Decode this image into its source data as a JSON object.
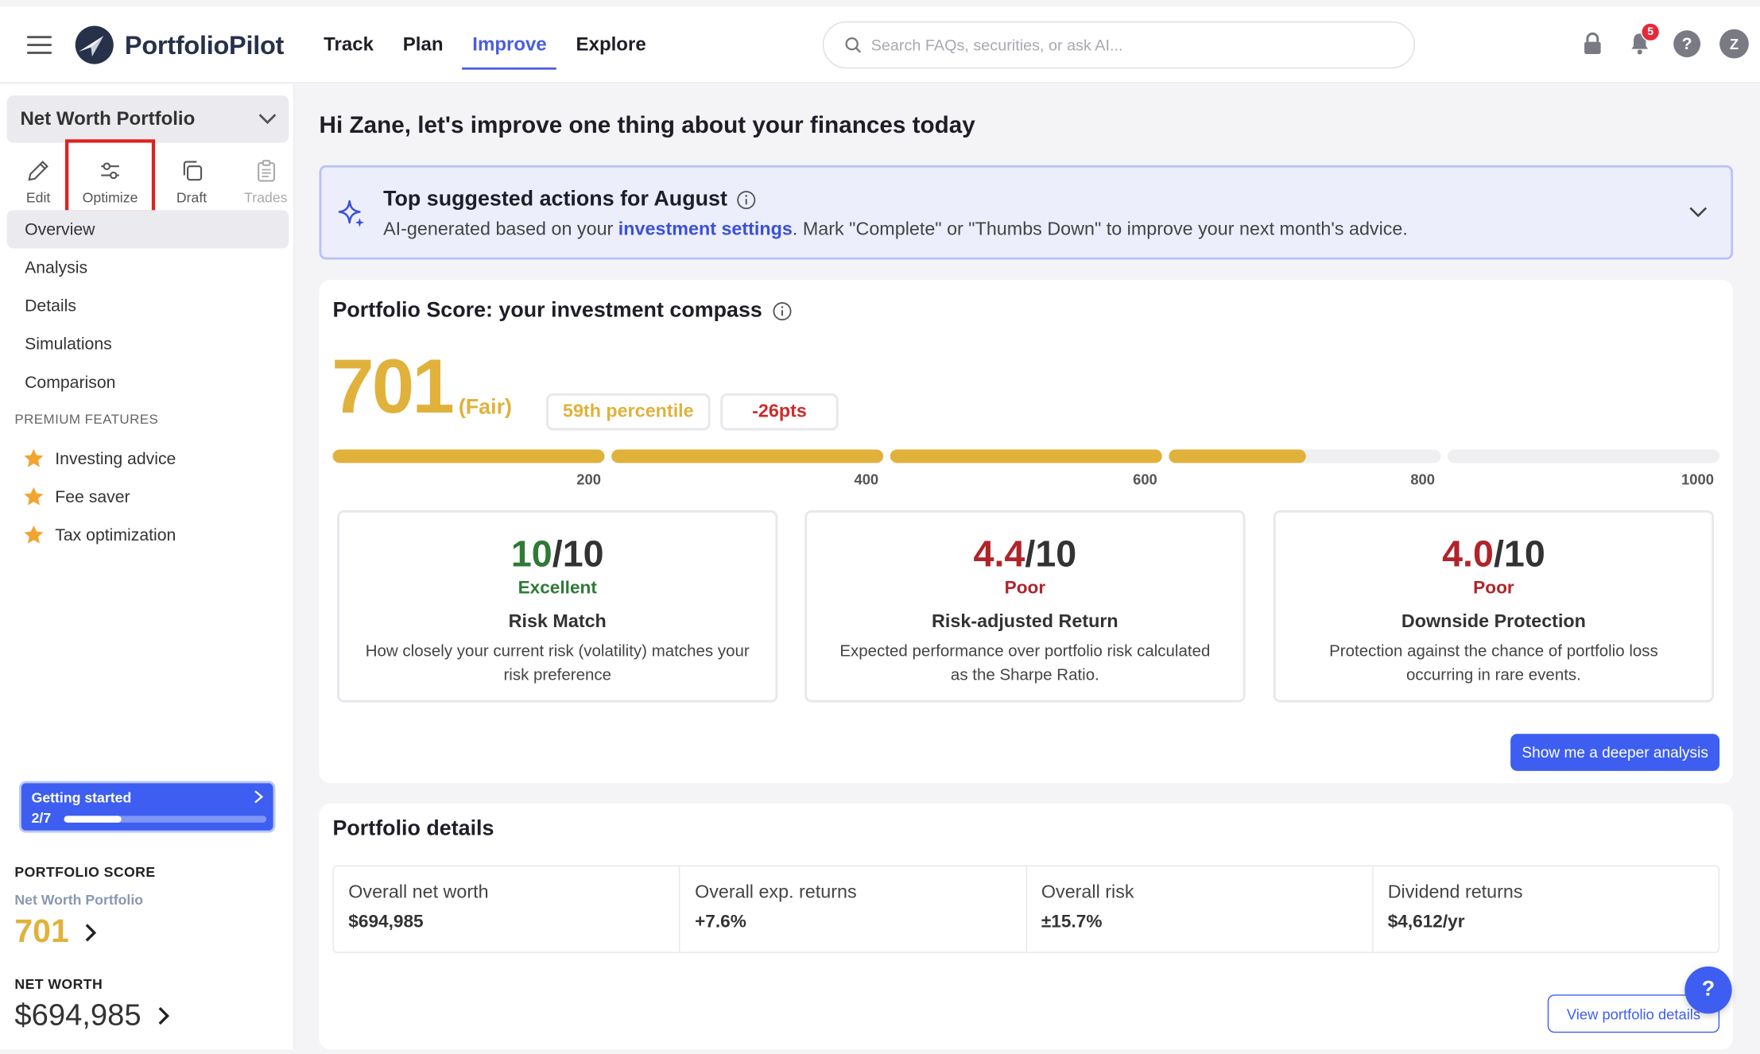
{
  "header": {
    "brand": "PortfolioPilot",
    "nav": [
      {
        "label": "Track"
      },
      {
        "label": "Plan"
      },
      {
        "label": "Improve"
      },
      {
        "label": "Explore"
      }
    ],
    "search_placeholder": "Search FAQs, securities, or ask AI...",
    "notification_count": "5",
    "avatar_initial": "Z"
  },
  "sidebar": {
    "portfolio_name": "Net Worth Portfolio",
    "tools": [
      {
        "label": "Edit",
        "icon": "pencil-icon"
      },
      {
        "label": "Optimize",
        "icon": "sliders-icon"
      },
      {
        "label": "Draft",
        "icon": "copy-icon"
      },
      {
        "label": "Trades",
        "icon": "clipboard-icon"
      }
    ],
    "nav": [
      {
        "label": "Overview"
      },
      {
        "label": "Analysis"
      },
      {
        "label": "Details"
      },
      {
        "label": "Simulations"
      },
      {
        "label": "Comparison"
      }
    ],
    "premium_title": "PREMIUM FEATURES",
    "premium": [
      {
        "label": "Investing advice",
        "icon": "star-icon"
      },
      {
        "label": "Fee saver",
        "icon": "star-icon"
      },
      {
        "label": "Tax optimization",
        "icon": "star-icon"
      }
    ],
    "getting_started": {
      "title": "Getting started",
      "count": "2/7",
      "progress": 0.2857
    },
    "portfolio_score_label": "PORTFOLIO SCORE",
    "portfolio_score_sub": "Net Worth Portfolio",
    "portfolio_score_value": "701",
    "net_worth_label": "NET WORTH",
    "net_worth_value": "$694,985"
  },
  "main": {
    "greeting": "Hi Zane, let's improve one thing about your finances today",
    "suggest": {
      "title": "Top suggested actions for August",
      "sub_prefix": "AI-generated based on your ",
      "sub_link": "investment settings",
      "sub_suffix": ". Mark \"Complete\" or \"Thumbs Down\" to improve your next month's advice."
    },
    "score_card": {
      "title": "Portfolio Score: your investment compass",
      "score": "701",
      "rating": "(Fair)",
      "percentile": "59th percentile",
      "change": "-26pts",
      "score_value": 701,
      "scale_max": 1000,
      "ticks": [
        "200",
        "400",
        "600",
        "800",
        "1000"
      ],
      "metrics": [
        {
          "value": "10",
          "suffix": "/10",
          "rating": "Excellent",
          "name": "Risk Match",
          "desc": "How closely your current risk (volatility) matches your risk preference",
          "status": "good"
        },
        {
          "value": "4.4",
          "suffix": "/10",
          "rating": "Poor",
          "name": "Risk-adjusted Return",
          "desc": "Expected performance over portfolio risk calculated as the Sharpe Ratio.",
          "status": "bad"
        },
        {
          "value": "4.0",
          "suffix": "/10",
          "rating": "Poor",
          "name": "Downside Protection",
          "desc": "Protection against the chance of portfolio loss occurring in rare events.",
          "status": "bad"
        }
      ],
      "deeper_button": "Show me a deeper analysis"
    },
    "details_card": {
      "title": "Portfolio details",
      "cells": [
        {
          "label": "Overall net worth",
          "value": "$694,985"
        },
        {
          "label": "Overall exp. returns",
          "value": "+7.6%"
        },
        {
          "label": "Overall risk",
          "value": "±15.7%"
        },
        {
          "label": "Dividend returns",
          "value": "$4,612/yr"
        }
      ],
      "view_button": "View portfolio details"
    },
    "fab_label": "?"
  },
  "colors": {
    "accent": "#3d5ef0",
    "score_gold": "#e0b23c",
    "good": "#2e7a36",
    "bad": "#b0242a",
    "highlight_box": "#e0201e"
  }
}
